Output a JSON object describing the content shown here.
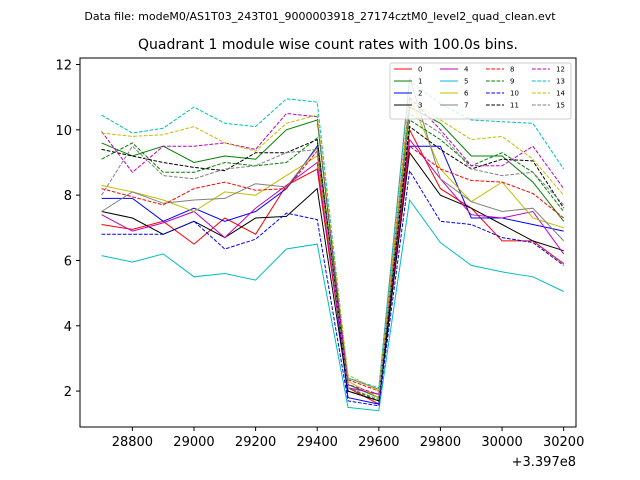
{
  "chart_data": {
    "type": "line",
    "suptitle": "Data file: modeM0/AS1T03_243T01_9000003918_27174cztM0_level2_quad_clean.evt",
    "title": "Quadrant 1 module wise count rates with 100.0s bins.",
    "xlabel": "",
    "ylabel": "",
    "x_offset_label": "+3.397e8",
    "xlim": [
      28630,
      30240
    ],
    "ylim": [
      0.9,
      12.2
    ],
    "x_ticks": [
      28800,
      29000,
      29200,
      29400,
      29600,
      29800,
      30000,
      30200
    ],
    "y_ticks": [
      2,
      4,
      6,
      8,
      10,
      12
    ],
    "x": [
      28700,
      28800,
      28900,
      29000,
      29100,
      29200,
      29300,
      29400,
      29500,
      29600,
      29700,
      29800,
      29900,
      30000,
      30100,
      30200
    ],
    "series": [
      {
        "name": "0",
        "color": "#ff0000",
        "dash": "solid",
        "values": [
          7.1,
          6.95,
          7.2,
          6.5,
          7.3,
          6.8,
          8.3,
          8.8,
          2.1,
          1.6,
          10.0,
          8.2,
          7.6,
          6.6,
          6.6,
          5.9
        ]
      },
      {
        "name": "1",
        "color": "#008000",
        "dash": "solid",
        "values": [
          9.6,
          9.2,
          9.5,
          9.0,
          9.2,
          9.1,
          10.0,
          10.3,
          2.2,
          1.8,
          10.7,
          10.2,
          9.2,
          9.2,
          8.4,
          7.2
        ]
      },
      {
        "name": "2",
        "color": "#0000ff",
        "dash": "solid",
        "values": [
          7.9,
          7.9,
          7.2,
          7.6,
          7.2,
          7.5,
          8.2,
          9.5,
          1.8,
          1.6,
          9.5,
          9.5,
          7.3,
          7.3,
          7.1,
          6.9
        ]
      },
      {
        "name": "3",
        "color": "#000000",
        "dash": "solid",
        "values": [
          7.5,
          7.3,
          6.8,
          7.2,
          6.7,
          7.3,
          7.35,
          8.2,
          2.0,
          1.7,
          9.3,
          8.0,
          7.6,
          7.1,
          6.6,
          6.3
        ]
      },
      {
        "name": "4",
        "color": "#bf00bf",
        "dash": "solid",
        "values": [
          7.4,
          6.9,
          7.15,
          7.5,
          6.7,
          7.6,
          8.3,
          9.0,
          2.1,
          1.9,
          9.7,
          8.5,
          7.4,
          7.3,
          7.5,
          6.2
        ]
      },
      {
        "name": "5",
        "color": "#00bfbf",
        "dash": "solid",
        "values": [
          6.15,
          5.95,
          6.2,
          5.5,
          5.6,
          5.4,
          6.35,
          6.5,
          1.5,
          1.4,
          7.85,
          6.55,
          5.85,
          5.65,
          5.5,
          5.05
        ]
      },
      {
        "name": "6",
        "color": "#bfbf00",
        "dash": "solid",
        "values": [
          8.3,
          8.1,
          7.85,
          7.5,
          8.1,
          8.0,
          8.6,
          9.2,
          2.3,
          1.8,
          11.0,
          8.8,
          7.8,
          8.4,
          7.3,
          7.0
        ]
      },
      {
        "name": "7",
        "color": "#808080",
        "dash": "solid",
        "values": [
          7.5,
          8.1,
          7.75,
          7.85,
          7.9,
          8.35,
          8.25,
          9.45,
          2.4,
          2.05,
          11.6,
          8.5,
          7.8,
          7.5,
          7.6,
          6.6
        ]
      },
      {
        "name": "8",
        "color": "#ff0000",
        "dash": "dashed",
        "values": [
          8.2,
          7.95,
          7.7,
          8.2,
          8.4,
          8.15,
          8.2,
          9.35,
          2.35,
          2.0,
          9.5,
          8.8,
          8.45,
          8.4,
          8.05,
          7.3
        ]
      },
      {
        "name": "9",
        "color": "#008000",
        "dash": "dashed",
        "values": [
          9.1,
          9.6,
          8.7,
          8.7,
          9.0,
          8.9,
          9.0,
          9.75,
          2.1,
          1.7,
          10.3,
          9.7,
          8.9,
          9.3,
          8.7,
          7.5
        ]
      },
      {
        "name": "10",
        "color": "#0000ff",
        "dash": "dashed",
        "values": [
          6.8,
          6.8,
          6.8,
          7.2,
          6.35,
          6.65,
          7.45,
          7.25,
          1.7,
          1.55,
          8.75,
          7.2,
          7.1,
          6.7,
          6.55,
          5.85
        ]
      },
      {
        "name": "11",
        "color": "#000000",
        "dash": "dashed",
        "values": [
          9.4,
          9.2,
          9.0,
          8.85,
          8.75,
          9.3,
          9.3,
          9.7,
          2.0,
          1.7,
          10.1,
          9.4,
          8.8,
          9.1,
          9.05,
          7.6
        ]
      },
      {
        "name": "12",
        "color": "#bf00bf",
        "dash": "dashed",
        "values": [
          9.95,
          8.7,
          9.5,
          9.5,
          9.6,
          9.4,
          10.5,
          10.4,
          2.2,
          1.9,
          11.0,
          10.0,
          8.9,
          8.9,
          9.5,
          8.2
        ]
      },
      {
        "name": "13",
        "color": "#00bfbf",
        "dash": "dashed",
        "values": [
          10.45,
          9.9,
          10.05,
          10.7,
          10.2,
          10.1,
          10.95,
          10.85,
          2.4,
          2.1,
          11.5,
          10.8,
          10.3,
          10.25,
          10.2,
          8.8
        ]
      },
      {
        "name": "14",
        "color": "#bfbf00",
        "dash": "dashed",
        "values": [
          9.9,
          9.8,
          9.85,
          10.1,
          9.6,
          9.35,
          10.2,
          10.45,
          2.5,
          2.0,
          10.9,
          10.3,
          9.7,
          9.8,
          9.1,
          8.0
        ]
      },
      {
        "name": "15",
        "color": "#808080",
        "dash": "dashed",
        "values": [
          8.0,
          9.5,
          8.6,
          8.5,
          8.8,
          8.9,
          9.3,
          9.4,
          2.1,
          1.75,
          10.5,
          9.9,
          8.8,
          8.6,
          8.7,
          7.7
        ]
      }
    ]
  }
}
